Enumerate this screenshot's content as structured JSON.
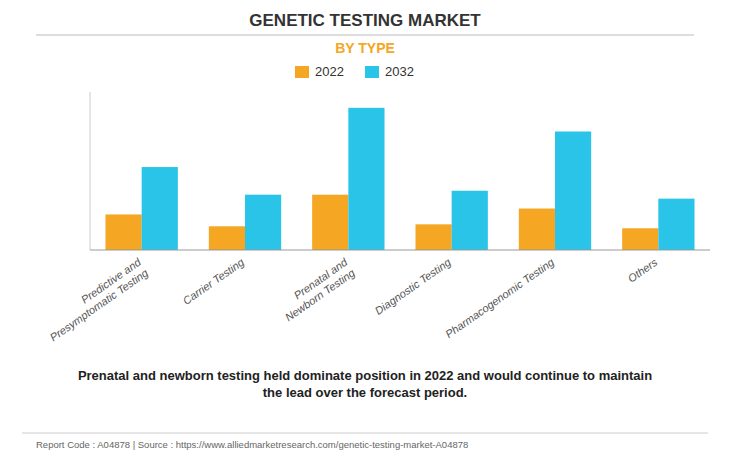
{
  "chart_data": {
    "type": "bar",
    "title": "GENETIC TESTING MARKET",
    "subtitle": "BY TYPE",
    "categories": [
      "Predictive and\nPresymptomatic Testing",
      "Carrier Testing",
      "Prenatal and\nNewborn Testing",
      "Diagnostic Testing",
      "Pharmacogenomic Testing",
      "Others"
    ],
    "series": [
      {
        "name": "2022",
        "color": "#F5A623",
        "values": [
          1.8,
          1.2,
          2.8,
          1.3,
          2.1,
          1.1
        ]
      },
      {
        "name": "2032",
        "color": "#29C4E8",
        "values": [
          4.2,
          2.8,
          7.2,
          3.0,
          6.0,
          2.6
        ]
      }
    ],
    "ylim": [
      0,
      8
    ],
    "grid": false,
    "legend": "top",
    "tick_labels": "x",
    "annotations": [
      "Prenatal and newborn testing held dominate position in 2022 and would continue to maintain\nthe lead over the forecast period.",
      "Report Code : A04878  |  Source : https://www.alliedmarketresearch.com/genetic-testing-market-A04878"
    ]
  }
}
